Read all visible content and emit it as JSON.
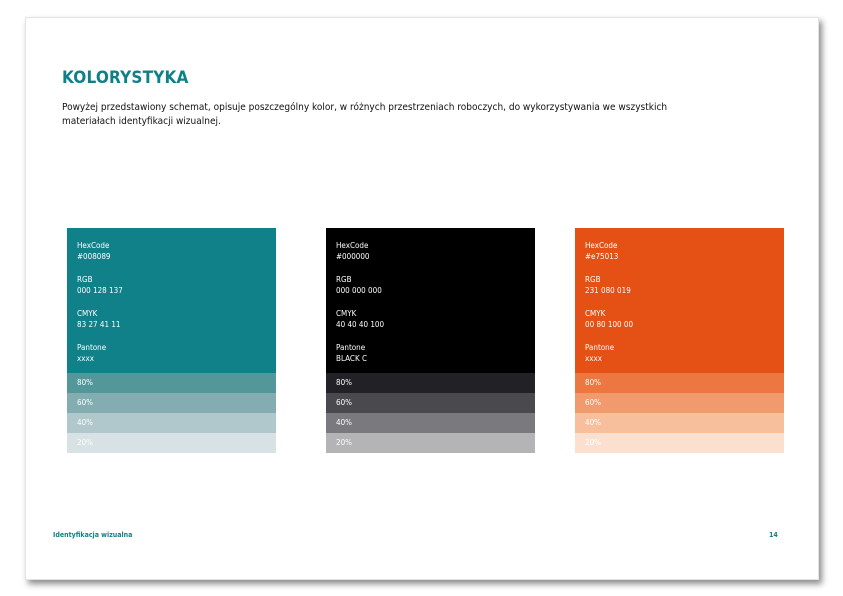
{
  "page": {
    "title": "KOLORYSTYKA",
    "description": "Powyżej przedstawiony schemat, opisuje poszczególny kolor, w różnych przestrzeniach roboczych, do wykorzystywania we wszystkich materiałach identyfikacji wizualnej.",
    "footer_label": "Identyfikacja wizualna",
    "page_number": "14"
  },
  "swatches": [
    {
      "color": "#108089",
      "hex_label": "HexCode",
      "hex": "#008089",
      "rgb_label": "RGB",
      "rgb": "000 128 137",
      "cmyk_label": "CMYK",
      "cmyk": "83 27 41 11",
      "pantone_label": "Pantone",
      "pantone": "xxxx",
      "tints": [
        {
          "label": "80%",
          "color": "#53979a"
        },
        {
          "label": "60%",
          "color": "#83adb1"
        },
        {
          "label": "40%",
          "color": "#b0c7cb"
        },
        {
          "label": "20%",
          "color": "#d8e1e3"
        }
      ]
    },
    {
      "color": "#000000",
      "hex_label": "HexCode",
      "hex": "#000000",
      "rgb_label": "RGB",
      "rgb": "000 000 000",
      "cmyk_label": "CMYK",
      "cmyk": "40 40 40 100",
      "pantone_label": "Pantone",
      "pantone": "BLACK C",
      "tints": [
        {
          "label": "80%",
          "color": "#222226"
        },
        {
          "label": "60%",
          "color": "#4a494d"
        },
        {
          "label": "40%",
          "color": "#7a797d"
        },
        {
          "label": "20%",
          "color": "#b4b3b5"
        }
      ]
    },
    {
      "color": "#e55015",
      "hex_label": "HexCode",
      "hex": "#e75013",
      "rgb_label": "RGB",
      "rgb": "231 080 019",
      "cmyk_label": "CMYK",
      "cmyk": "00 80 100 00",
      "pantone_label": "Pantone",
      "pantone": "xxxx",
      "tints": [
        {
          "label": "80%",
          "color": "#ed7741"
        },
        {
          "label": "60%",
          "color": "#f19a6d"
        },
        {
          "label": "40%",
          "color": "#f7bf9b"
        },
        {
          "label": "20%",
          "color": "#fbe0d0"
        }
      ]
    }
  ]
}
